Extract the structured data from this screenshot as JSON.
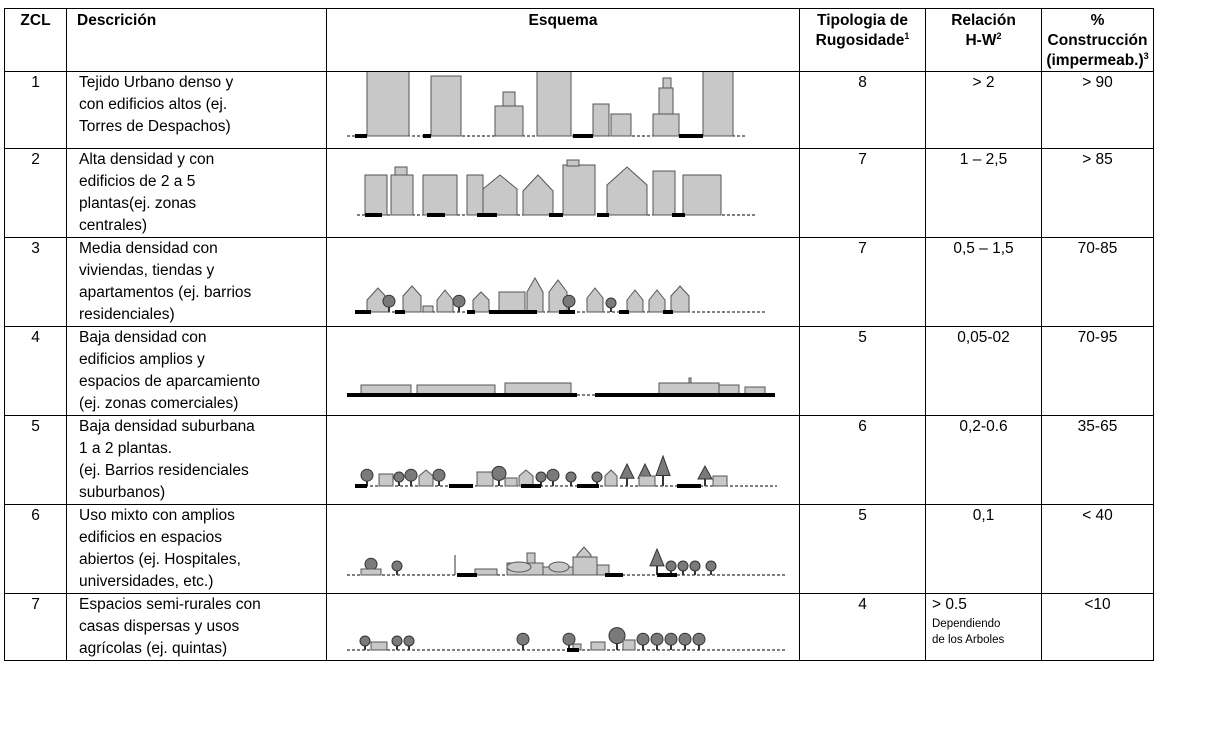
{
  "headers": {
    "zcl": "ZCL",
    "descripcion": "Descrición",
    "esquema": "Esquema",
    "tipologia_line1": "Tipologia de",
    "tipologia_line2": "Rugosidade",
    "tipologia_sup": "1",
    "relacion_line1": "Relación",
    "relacion_line2": "H-W",
    "relacion_sup": "2",
    "construccion_line1": "% Construcción",
    "construccion_line2": "(impermeab.)",
    "construccion_sup": "3"
  },
  "rows": [
    {
      "zcl": "1",
      "desc": [
        "Tejido Urbano  denso y",
        "con edificios altos (ej.",
        "Torres de Despachos)"
      ],
      "rug": "8",
      "hw": "> 2",
      "hw_note": "",
      "pct": "> 90"
    },
    {
      "zcl": "2",
      "desc": [
        "Alta densidad y con",
        "edificios de 2 a 5",
        "plantas(ej. zonas",
        "centrales)"
      ],
      "rug": "7",
      "hw": "1 – 2,5",
      "hw_note": "",
      "pct": "> 85"
    },
    {
      "zcl": "3",
      "desc": [
        "Media densidad con",
        "viviendas, tiendas y",
        "apartamentos (ej. barrios",
        "residenciales)"
      ],
      "rug": "7",
      "hw": "0,5 – 1,5",
      "hw_note": "",
      "pct": "70-85"
    },
    {
      "zcl": "4",
      "desc": [
        "Baja densidad con",
        "edificios amplios y",
        "espacios de aparcamiento",
        "(ej. zonas comerciales)"
      ],
      "rug": "5",
      "hw": "0,05-02",
      "hw_note": "",
      "pct": "70-95"
    },
    {
      "zcl": "5",
      "desc": [
        "Baja densidad suburbana",
        "1 a 2 plantas.",
        "(ej. Barrios residenciales",
        "suburbanos)"
      ],
      "rug": "6",
      "hw": "0,2-0.6",
      "hw_note": "",
      "pct": "35-65"
    },
    {
      "zcl": "6",
      "desc": [
        "Uso mixto con amplios",
        "edificios en espacios",
        "abiertos (ej. Hospitales,",
        "universidades, etc.)"
      ],
      "rug": "5",
      "hw": "0,1",
      "hw_note": "",
      "pct": "< 40"
    },
    {
      "zcl": "7",
      "desc": [
        "Espacios semi-rurales con",
        "casas dispersas y usos",
        "agrícolas (ej. quintas)"
      ],
      "rug": "4",
      "hw": "> 0.5",
      "hw_note": [
        "Dependiendo",
        "de los Arboles"
      ],
      "pct": "<10"
    }
  ],
  "schema_icons": [
    "tall-buildings-schema",
    "mid-rise-buildings-schema",
    "houses-trees-schema",
    "large-lowrise-schema",
    "suburban-houses-schema",
    "mixed-use-schema",
    "semi-rural-schema"
  ],
  "colors": {
    "building_fill": "#c8c8c8",
    "tree_fill": "#7a7a7a",
    "line": "#000000"
  }
}
